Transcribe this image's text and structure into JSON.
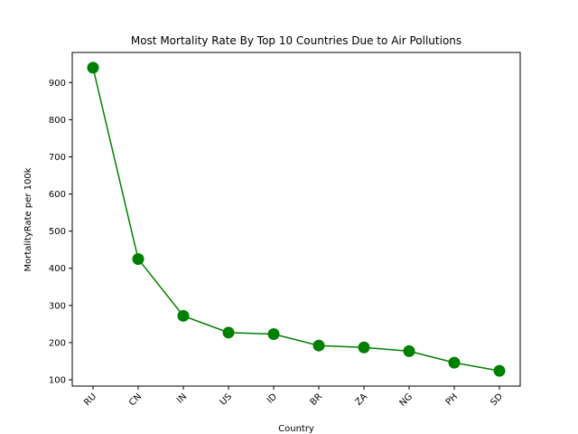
{
  "chart_data": {
    "type": "line",
    "title": "Most Mortality Rate By Top 10 Countries Due to Air Pollutions",
    "xlabel": "Country",
    "ylabel": "MortalityRate per 100k",
    "categories": [
      "RU",
      "CN",
      "IN",
      "US",
      "ID",
      "BR",
      "ZA",
      "NG",
      "PH",
      "SD"
    ],
    "values": [
      940,
      425,
      272,
      227,
      223,
      192,
      187,
      177,
      146,
      124
    ],
    "yticks": [
      100,
      200,
      300,
      400,
      500,
      600,
      700,
      800,
      900
    ],
    "ylim": [
      83,
      981
    ],
    "grid": false,
    "legend": "none",
    "colors": {
      "line": "#008000",
      "marker": "#008000"
    }
  }
}
